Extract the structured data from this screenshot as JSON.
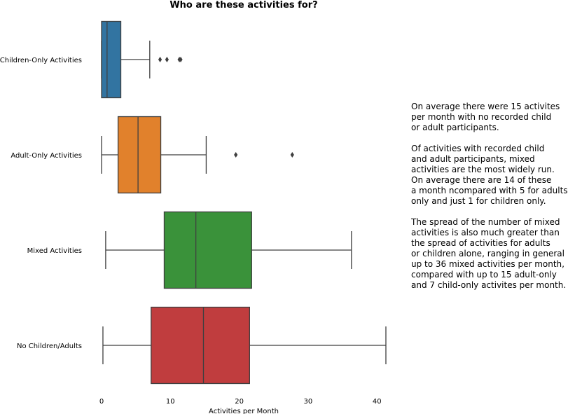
{
  "chart_data": {
    "type": "boxplot",
    "orientation": "horizontal",
    "title": "Who are these activities for?",
    "xlabel": "Activities per Month",
    "ylabel": "",
    "xlim": [
      -0.5,
      42
    ],
    "xticks": [
      0,
      10,
      20,
      30,
      40
    ],
    "grid": false,
    "legend": false,
    "categories": [
      "Children-Only Activities",
      "Adult-Only Activities",
      "Mixed Activities",
      "No Children/Adults"
    ],
    "series": [
      {
        "category": "Children-Only Activities",
        "whisker_low": 0,
        "q1": 0,
        "median": 0.8,
        "q3": 2.8,
        "whisker_high": 7,
        "outliers": [
          8.5,
          9.5,
          11.3,
          11.5
        ],
        "color": "#3274a1"
      },
      {
        "category": "Adult-Only Activities",
        "whisker_low": 0,
        "q1": 2.4,
        "median": 5.3,
        "q3": 8.6,
        "whisker_high": 15.2,
        "outliers": [
          19.5,
          27.7
        ],
        "color": "#e1812c"
      },
      {
        "category": "Mixed Activities",
        "whisker_low": 0.6,
        "q1": 9.1,
        "median": 13.7,
        "q3": 21.8,
        "whisker_high": 36.3,
        "outliers": [],
        "color": "#3a923a"
      },
      {
        "category": "No Children/Adults",
        "whisker_low": 0.2,
        "q1": 7.2,
        "median": 14.8,
        "q3": 21.5,
        "whisker_high": 41.3,
        "outliers": [],
        "color": "#c03d3e"
      }
    ]
  },
  "annotation": {
    "paragraphs": [
      "On average there were 15 activites\nper month with no recorded child\nor adult participants.",
      "Of activities with recorded child\nand adult participants, mixed\nactivities are the most widely run.\nOn average there are 14 of these\na month ncompared with 5 for adults\nonly and just 1 for children only.",
      "The spread of the number of mixed\nactivities is also much greater than\nthe spread of activities for adults\nor children alone, ranging in general\nup to 36 mixed activities per month,\ncompared with up to 15 adult-only\nand 7 child-only activites per month."
    ]
  }
}
